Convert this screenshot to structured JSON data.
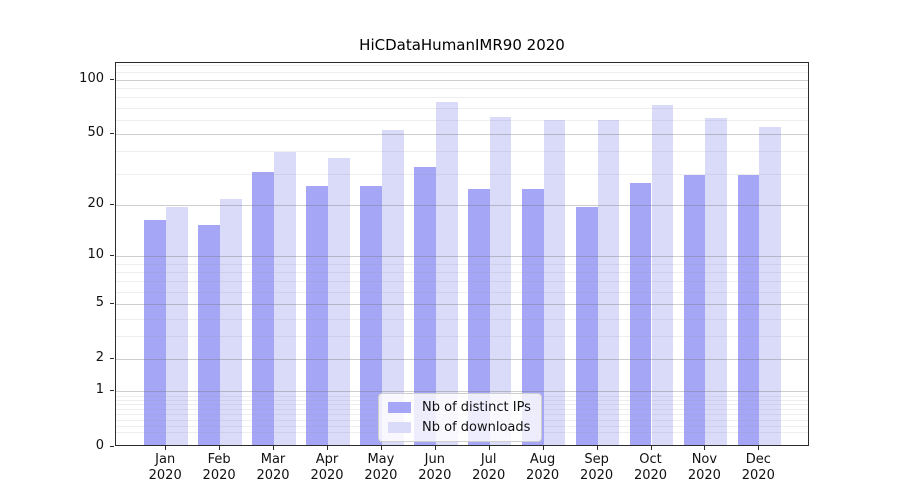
{
  "chart_data": {
    "type": "bar",
    "title": "HiCDataHumanIMR90 2020",
    "categories": [
      "Jan",
      "Feb",
      "Mar",
      "Apr",
      "May",
      "Jun",
      "Jul",
      "Aug",
      "Sep",
      "Oct",
      "Nov",
      "Dec"
    ],
    "category_year": "2020",
    "series": [
      {
        "name": "Nb of distinct IPs",
        "color": "#a6a6f7",
        "values": [
          16,
          15,
          30,
          25,
          25,
          32,
          24,
          24,
          19,
          26,
          29,
          29
        ]
      },
      {
        "name": "Nb of downloads",
        "color": "#dadaf9",
        "values": [
          19,
          21,
          39,
          36,
          52,
          74,
          61,
          59,
          59,
          71,
          60,
          54
        ]
      }
    ],
    "yscale": "log1p",
    "ylim": [
      0,
      123
    ],
    "yticks": [
      0,
      1,
      2,
      5,
      10,
      20,
      50,
      100
    ],
    "yticks_minor": [
      0.2,
      0.3,
      0.4,
      0.5,
      0.6,
      0.7,
      0.8,
      0.9,
      3,
      4,
      6,
      7,
      8,
      9,
      30,
      40,
      60,
      70,
      80,
      90,
      110,
      120
    ],
    "grid": "on",
    "legend_position": "lower center",
    "xlabel": "",
    "ylabel": ""
  }
}
